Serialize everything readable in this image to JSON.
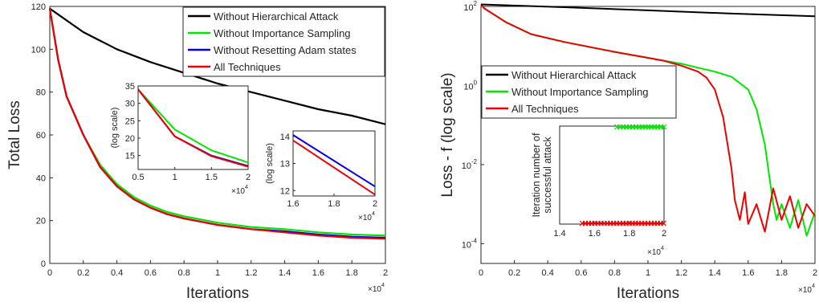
{
  "chart_data": [
    {
      "type": "line",
      "xlabel": "Iterations",
      "ylabel": "Total Loss",
      "x_multiplier": "×10^4",
      "xlim": [
        0,
        20000
      ],
      "ylim": [
        0,
        120
      ],
      "x_ticks": [
        "0",
        "0.2",
        "0.4",
        "0.6",
        "0.8",
        "1",
        "1.2",
        "1.4",
        "1.6",
        "1.8",
        "2"
      ],
      "y_ticks": [
        "0",
        "20",
        "40",
        "60",
        "80",
        "100",
        "120"
      ],
      "legend_position": "top-right",
      "series": [
        {
          "name": "Without Hierarchical Attack",
          "color": "#000000",
          "x": [
            0,
            2000,
            4000,
            6000,
            8000,
            10000,
            12000,
            14000,
            16000,
            18000,
            20000
          ],
          "y": [
            119,
            108,
            100,
            94,
            89,
            84,
            80,
            76,
            72,
            69,
            65
          ]
        },
        {
          "name": "Without Importance Sampling",
          "color": "#00e600",
          "x": [
            0,
            500,
            1000,
            2000,
            3000,
            4000,
            5000,
            6000,
            7000,
            8000,
            10000,
            12000,
            14000,
            16000,
            18000,
            20000
          ],
          "y": [
            119,
            95,
            78,
            60,
            46,
            37,
            31,
            27,
            24,
            22,
            19,
            17,
            16,
            14.5,
            13.5,
            13
          ]
        },
        {
          "name": "Without Resetting Adam states",
          "color": "#0000ee",
          "x": [
            0,
            500,
            1000,
            2000,
            3000,
            4000,
            5000,
            6000,
            7000,
            8000,
            10000,
            12000,
            14000,
            16000,
            18000,
            20000
          ],
          "y": [
            119,
            95,
            78,
            60,
            45,
            36,
            30,
            26,
            23,
            21,
            18,
            16,
            15,
            13.5,
            12.5,
            12
          ]
        },
        {
          "name": "All Techniques",
          "color": "#ee0000",
          "x": [
            0,
            500,
            1000,
            2000,
            3000,
            4000,
            5000,
            6000,
            7000,
            8000,
            10000,
            12000,
            14000,
            16000,
            18000,
            20000
          ],
          "y": [
            119,
            95,
            78,
            60,
            45,
            36,
            30,
            26,
            23,
            21,
            18,
            16,
            14.5,
            13,
            12,
            11.5
          ]
        }
      ],
      "insets": [
        {
          "ylabel": "(log scale)",
          "x_multiplier": "×10^4",
          "xlim": [
            5000,
            20000
          ],
          "ylim": [
            11,
            35
          ],
          "x_ticks": [
            {
              "v": 5000,
              "t": "0.5"
            },
            {
              "v": 10000,
              "t": "1"
            },
            {
              "v": 15000,
              "t": "1.5"
            },
            {
              "v": 20000,
              "t": "2"
            }
          ],
          "y_ticks": [
            {
              "v": 15,
              "t": "15"
            },
            {
              "v": 20,
              "t": "20"
            },
            {
              "v": 25,
              "t": "25"
            },
            {
              "v": 30,
              "t": "30"
            },
            {
              "v": 35,
              "t": "35"
            }
          ],
          "series": [
            {
              "color": "#00e600",
              "x": [
                5000,
                10000,
                15000,
                20000
              ],
              "y": [
                34,
                22.5,
                16.5,
                13
              ]
            },
            {
              "color": "#0000ee",
              "x": [
                5000,
                10000,
                15000,
                20000
              ],
              "y": [
                34,
                20.5,
                15,
                12
              ]
            },
            {
              "color": "#ee0000",
              "x": [
                5000,
                10000,
                15000,
                20000
              ],
              "y": [
                34,
                20.5,
                14.8,
                11.8
              ]
            }
          ]
        },
        {
          "ylabel": "(log scale)",
          "x_multiplier": "×10^4",
          "xlim": [
            16000,
            20000
          ],
          "ylim": [
            11.8,
            14.2
          ],
          "x_ticks": [
            {
              "v": 16000,
              "t": "1.6"
            },
            {
              "v": 18000,
              "t": "1.8"
            },
            {
              "v": 20000,
              "t": "2"
            }
          ],
          "y_ticks": [
            {
              "v": 12,
              "t": "12"
            },
            {
              "v": 13,
              "t": "13"
            },
            {
              "v": 14,
              "t": "14"
            }
          ],
          "series": [
            {
              "color": "#0000ee",
              "x": [
                16000,
                20000
              ],
              "y": [
                14.05,
                12.15
              ]
            },
            {
              "color": "#ee0000",
              "x": [
                16000,
                20000
              ],
              "y": [
                13.85,
                11.85
              ]
            }
          ]
        }
      ]
    },
    {
      "type": "line",
      "xlabel": "Iterations",
      "ylabel": "Loss - f (log scale)",
      "x_multiplier": "×10^4",
      "xlim": [
        0,
        20000
      ],
      "ylim_log10": [
        -4.5,
        2
      ],
      "x_ticks": [
        "0",
        "0.2",
        "0.4",
        "0.6",
        "0.8",
        "1",
        "1.2",
        "1.4",
        "1.6",
        "1.8",
        "2"
      ],
      "y_ticks": [
        {
          "e": 2,
          "t": "10^2"
        },
        {
          "e": 0,
          "t": "10^0"
        },
        {
          "e": -2,
          "t": "10^-2"
        },
        {
          "e": -4,
          "t": "10^-4"
        }
      ],
      "legend_position": "center-left",
      "series": [
        {
          "name": "Without Hierarchical Attack",
          "color": "#000000",
          "x": [
            0,
            5000,
            10000,
            15000,
            20000
          ],
          "y_log10": [
            2.05,
            1.98,
            1.9,
            1.82,
            1.75
          ]
        },
        {
          "name": "Without Importance Sampling",
          "color": "#00e600",
          "x": [
            0,
            200,
            1500,
            3000,
            5000,
            8000,
            10000,
            12000,
            13000,
            14000,
            15000,
            16000,
            16500,
            17000,
            17300,
            17500,
            17700,
            18000,
            18500,
            19000,
            19500,
            20000
          ],
          "y_log10": [
            2.05,
            1.95,
            1.6,
            1.3,
            1.1,
            0.85,
            0.7,
            0.55,
            0.45,
            0.35,
            0.22,
            -0.1,
            -0.6,
            -1.5,
            -2.4,
            -3.0,
            -3.4,
            -3.0,
            -3.6,
            -2.9,
            -3.8,
            -3.2
          ]
        },
        {
          "name": "All Techniques",
          "color": "#ee0000",
          "x": [
            0,
            200,
            1500,
            3000,
            5000,
            8000,
            10000,
            11000,
            12000,
            13000,
            13500,
            14000,
            14500,
            15000,
            15200,
            15500,
            15800,
            16000,
            16500,
            17000,
            17500,
            18000,
            18500,
            19000,
            19500,
            20000
          ],
          "y_log10": [
            2.05,
            1.95,
            1.6,
            1.3,
            1.1,
            0.85,
            0.7,
            0.62,
            0.5,
            0.35,
            0.2,
            -0.1,
            -0.8,
            -2.1,
            -2.9,
            -3.4,
            -2.7,
            -3.5,
            -3.0,
            -3.7,
            -2.6,
            -3.4,
            -2.8,
            -3.6,
            -3.0,
            -3.3
          ]
        }
      ],
      "inset": {
        "ylabel": [
          "Iteration number of",
          "successful attack"
        ],
        "x_multiplier": "×10^4",
        "xlim": [
          14000,
          20000
        ],
        "x_ticks": [
          {
            "v": 14000,
            "t": "1.4"
          },
          {
            "v": 16000,
            "t": "1.6"
          },
          {
            "v": 18000,
            "t": "1.8"
          },
          {
            "v": 20000,
            "t": "2"
          }
        ],
        "green_markers": {
          "from": 17300,
          "to": 20000,
          "level": "top"
        },
        "red_markers": {
          "from": 15300,
          "to": 20000,
          "level": "bottom"
        }
      }
    }
  ]
}
